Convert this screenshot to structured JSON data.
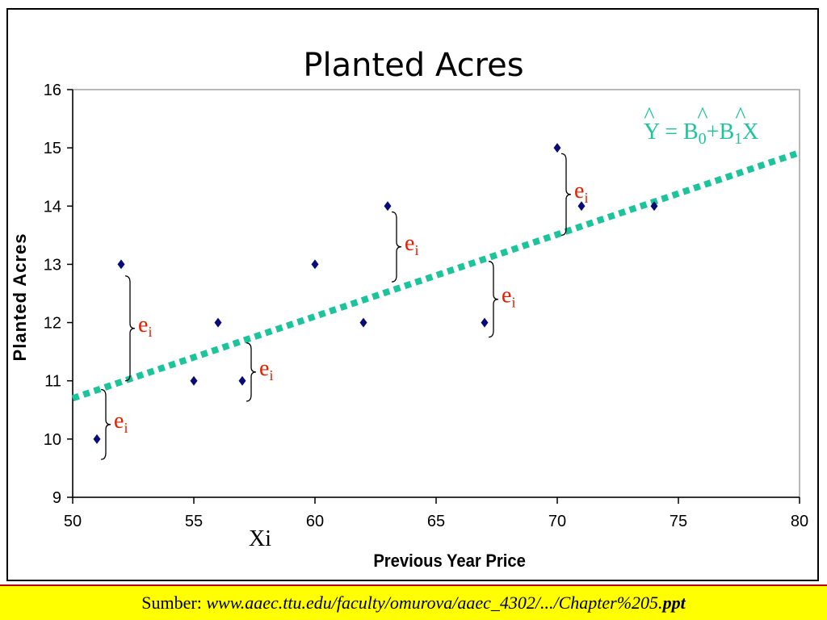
{
  "colors": {
    "point": "#0a0a78",
    "line": "#1bc49a",
    "residual_label": "#e02000",
    "footer_bg": "#ffff00",
    "footer_border": "#c00000"
  },
  "chart_data": {
    "type": "scatter",
    "title": "Planted Acres",
    "xlabel": "Previous Year Price",
    "ylabel": "Planted Acres",
    "xlim": [
      50,
      80
    ],
    "ylim": [
      9,
      16
    ],
    "xticks": [
      50,
      55,
      60,
      65,
      70,
      75,
      80
    ],
    "yticks": [
      9,
      10,
      11,
      12,
      13,
      14,
      15,
      16
    ],
    "grid": false,
    "points": [
      {
        "x": 51,
        "y": 10
      },
      {
        "x": 52,
        "y": 13
      },
      {
        "x": 55,
        "y": 11
      },
      {
        "x": 56,
        "y": 12
      },
      {
        "x": 57,
        "y": 11
      },
      {
        "x": 60,
        "y": 13
      },
      {
        "x": 62,
        "y": 12
      },
      {
        "x": 63,
        "y": 14
      },
      {
        "x": 67,
        "y": 12
      },
      {
        "x": 70,
        "y": 15
      },
      {
        "x": 71,
        "y": 14
      },
      {
        "x": 74,
        "y": 14
      }
    ],
    "regression_line": {
      "x": [
        50,
        80
      ],
      "y": [
        10.7,
        14.9
      ],
      "style": "dotted"
    },
    "regression_equation": {
      "y_hat": "Y",
      "eq": " = ",
      "b0": "B",
      "b0_sub": "0",
      "plus": "+",
      "b1": "B",
      "b1_sub": "1",
      "x": "X",
      "hat": "^"
    },
    "residuals": [
      {
        "x": 51,
        "y_from": 9.65,
        "y_to": 10.85,
        "label": "e",
        "label_sub": "i"
      },
      {
        "x": 52,
        "y_from": 11.0,
        "y_to": 12.8,
        "label": "e",
        "label_sub": "i"
      },
      {
        "x": 57,
        "y_from": 10.65,
        "y_to": 11.65,
        "label": "e",
        "label_sub": "i"
      },
      {
        "x": 63,
        "y_from": 12.7,
        "y_to": 13.9,
        "label": "e",
        "label_sub": "i"
      },
      {
        "x": 67,
        "y_from": 11.75,
        "y_to": 13.05,
        "label": "e",
        "label_sub": "i"
      },
      {
        "x": 70,
        "y_from": 13.5,
        "y_to": 14.9,
        "label": "e",
        "label_sub": "i"
      }
    ],
    "annotation_xi": "Xi"
  },
  "footer": {
    "prefix": "Sumber: ",
    "url": "www.aaec.ttu.edu/faculty/omurova/aaec_4302/.../Chapter%205.",
    "ext": "ppt"
  }
}
